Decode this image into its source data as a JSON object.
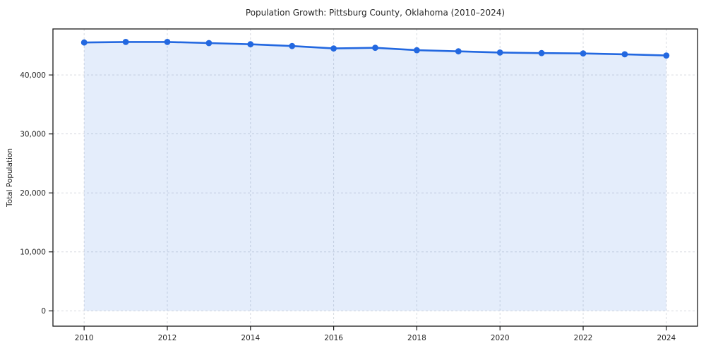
{
  "chart_data": {
    "type": "area",
    "title": "Population Growth: Pittsburg County, Oklahoma (2010–2024)",
    "xlabel": "",
    "ylabel": "Total Population",
    "series_name": "Total Population",
    "x": [
      2010,
      2011,
      2012,
      2013,
      2014,
      2015,
      2016,
      2017,
      2018,
      2019,
      2020,
      2021,
      2022,
      2023,
      2024
    ],
    "values": [
      45500,
      45600,
      45600,
      45400,
      45200,
      44900,
      44500,
      44600,
      44200,
      44000,
      43800,
      43700,
      43650,
      43500,
      43300
    ],
    "xlim": [
      2009.25,
      2024.75
    ],
    "ylim": [
      -2600,
      47800
    ],
    "x_ticks": [
      2010,
      2012,
      2014,
      2016,
      2018,
      2020,
      2022,
      2024
    ],
    "x_tick_labels": [
      "2010",
      "2012",
      "2014",
      "2016",
      "2018",
      "2020",
      "2022",
      "2024"
    ],
    "y_ticks": [
      0,
      10000,
      20000,
      30000,
      40000
    ],
    "y_tick_labels": [
      "0",
      "10,000",
      "20,000",
      "30,000",
      "40,000"
    ],
    "grid": true,
    "grid_style": "dashed",
    "legend": "none",
    "fill_baseline": 0,
    "colors": {
      "line": "#2368e0",
      "marker": "#2368e0",
      "fill": "rgba(35,104,224,0.12)",
      "grid": "#d7dae0",
      "spine": "#1a1a1a",
      "text": "#262626",
      "background": "#ffffff"
    }
  }
}
